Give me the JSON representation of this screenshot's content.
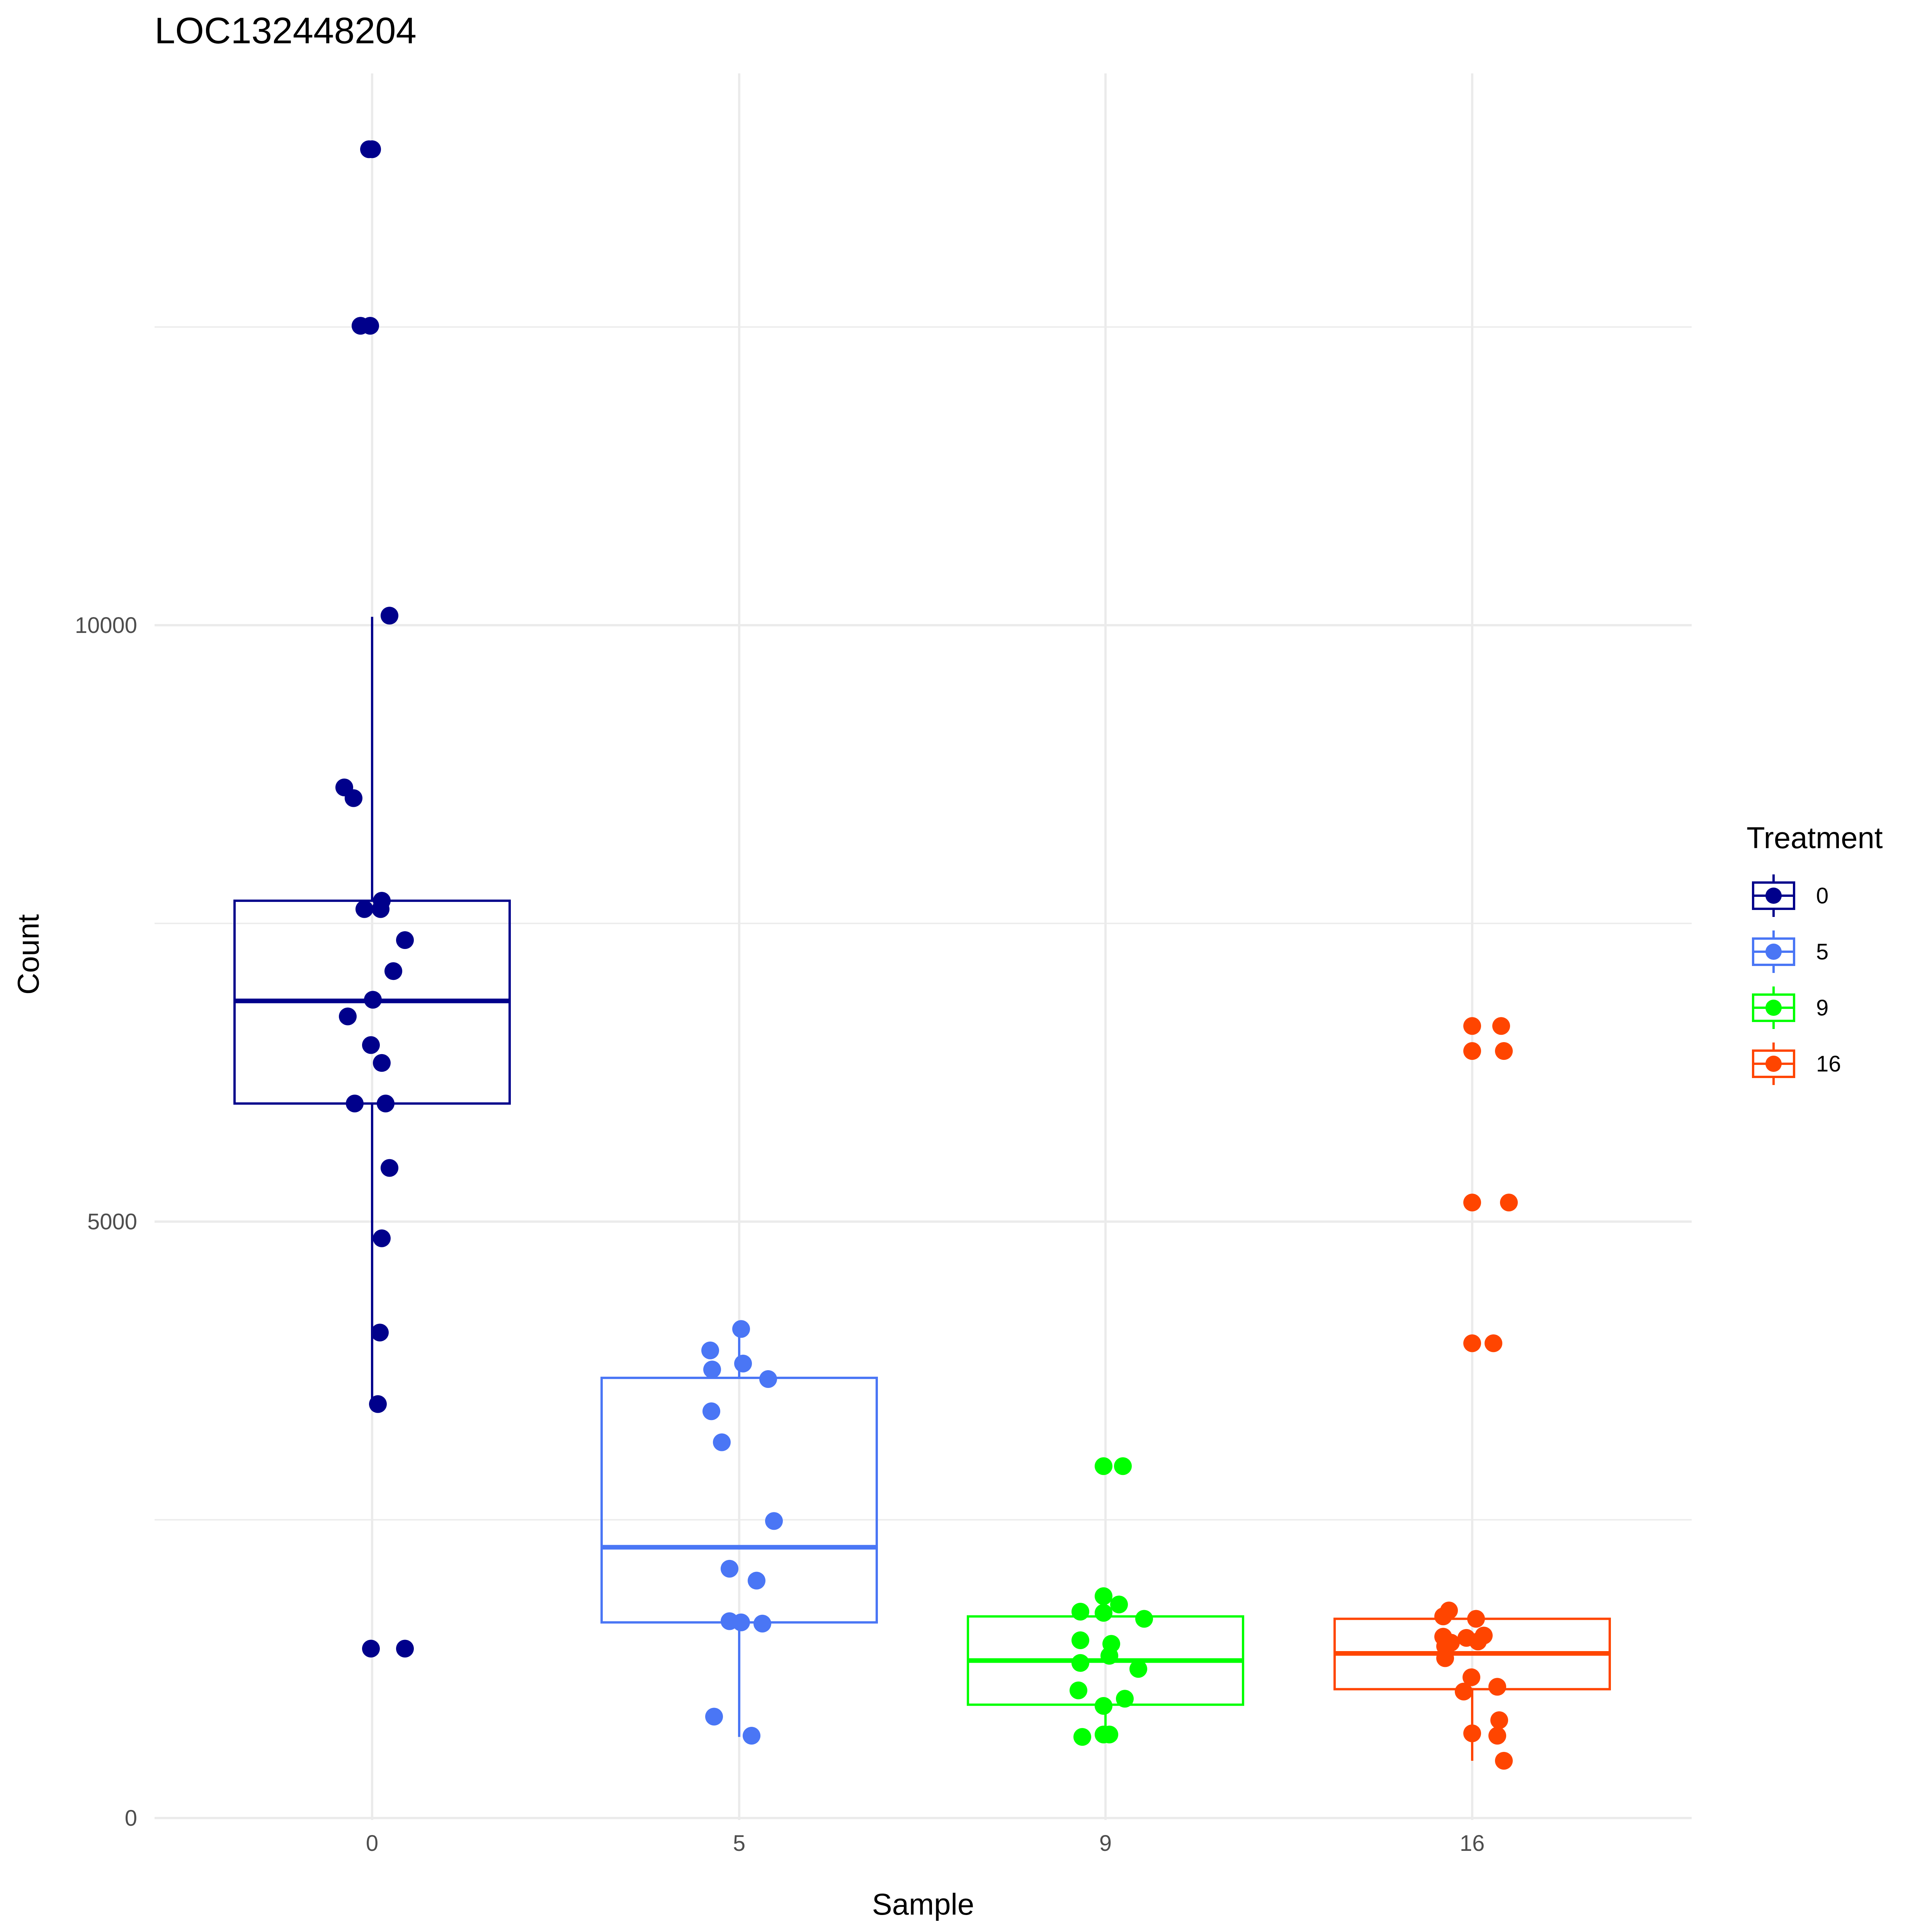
{
  "chart_data": {
    "type": "boxplot",
    "title": "LOC132448204",
    "xlabel": "Sample",
    "ylabel": "Count",
    "categories": [
      "0",
      "5",
      "9",
      "16"
    ],
    "y_ticks": [
      0,
      5000,
      10000
    ],
    "y_tick_labels": [
      "0",
      "5000",
      "10000"
    ],
    "ylim": [
      0,
      14500
    ],
    "grid": true,
    "legend": {
      "title": "Treatment",
      "position": "right",
      "entries": [
        "0",
        "5",
        "9",
        "16"
      ]
    },
    "colors": [
      "#00008B",
      "#4A76F5",
      "#00FF00",
      "#FF4500"
    ],
    "boxes": [
      {
        "category": "0",
        "whisker_low": 3470,
        "q1": 5990,
        "median": 6850,
        "q3": 7690,
        "whisker_high": 10070
      },
      {
        "category": "5",
        "whisker_low": 680,
        "q1": 1640,
        "median": 2270,
        "q3": 3690,
        "whisker_high": 4090
      },
      {
        "category": "9",
        "whisker_low": 680,
        "q1": 950,
        "median": 1320,
        "q3": 1690,
        "whisker_high": 1860
      },
      {
        "category": "16",
        "whisker_low": 480,
        "q1": 1080,
        "median": 1380,
        "q3": 1670,
        "whisker_high": 1710
      }
    ],
    "points": [
      {
        "category": "0",
        "values": [
          13990,
          13990,
          12510,
          12510,
          10080,
          8640,
          8550,
          7690,
          7620,
          7620,
          7360,
          7100,
          6860,
          6720,
          6480,
          6330,
          5990,
          5990,
          5450,
          4860,
          4070,
          3470,
          1420,
          1420
        ]
      },
      {
        "category": "5",
        "values": [
          4100,
          3920,
          3810,
          3760,
          3680,
          3410,
          3150,
          2490,
          2090,
          1990,
          1650,
          1640,
          1630,
          850,
          690
        ]
      },
      {
        "category": "9",
        "values": [
          2950,
          2950,
          1860,
          1790,
          1730,
          1720,
          1670,
          1490,
          1460,
          1360,
          1300,
          1250,
          1070,
          1000,
          940,
          700,
          700,
          680
        ]
      },
      {
        "category": "16",
        "values": [
          6640,
          6640,
          6430,
          6430,
          5160,
          5160,
          3980,
          3980,
          1740,
          1690,
          1670,
          1530,
          1520,
          1510,
          1480,
          1470,
          1440,
          1340,
          1180,
          1100,
          1060,
          820,
          710,
          690,
          480
        ]
      }
    ]
  }
}
